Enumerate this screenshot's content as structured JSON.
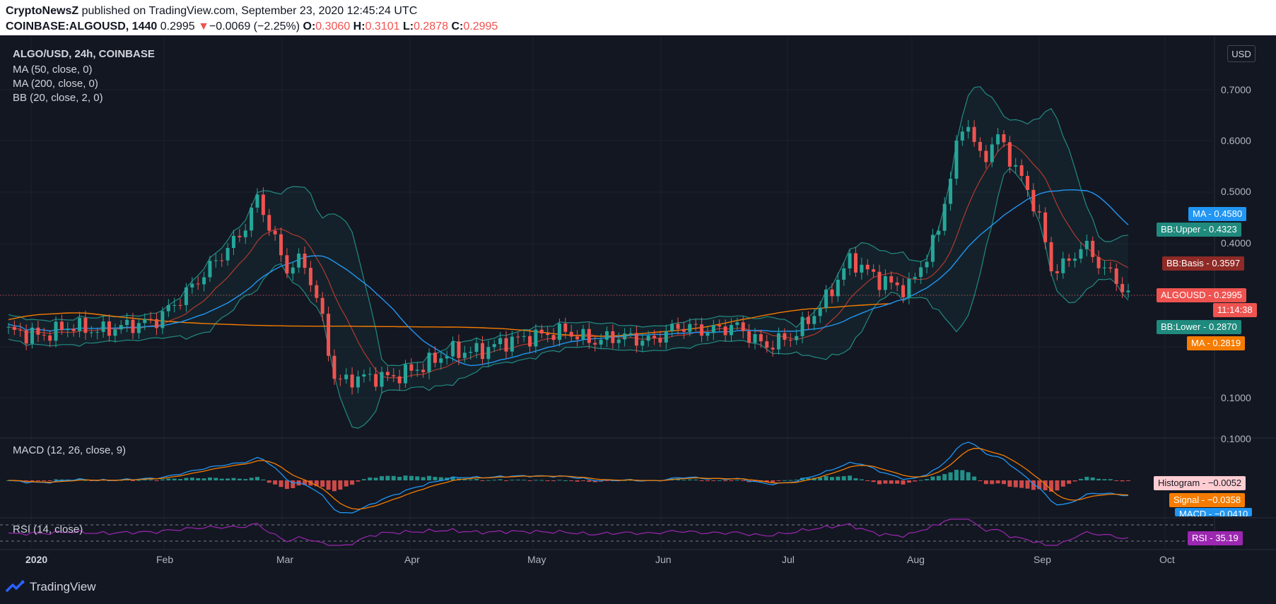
{
  "header": {
    "publisher": "CryptoNewsZ",
    "published_text": "published on TradingView.com, September 23, 2020 12:45:24 UTC",
    "symbol": "COINBASE:ALGOUSD, 1440",
    "last": "0.2995",
    "arrow": "▼",
    "change": "−0.0069 (−2.25%)",
    "o_label": "O:",
    "o_value": "0.3060",
    "h_label": "H:",
    "h_value": "0.3101",
    "l_label": "L:",
    "l_value": "0.2878",
    "c_label": "C:",
    "c_value": "0.2995"
  },
  "legend": {
    "title": "ALGO/USD, 24h, COINBASE",
    "ma50": "MA (50, close, 0)",
    "ma200": "MA (200, close, 0)",
    "bb": "BB (20, close, 2, 0)",
    "macd": "MACD (12, 26, close, 9)",
    "rsi": "RSI (14, close)"
  },
  "axis": {
    "unit": "USD",
    "price_ticks": [
      "0.7000",
      "0.6000",
      "0.5000",
      "0.4000",
      "0.1000"
    ],
    "macd_tick": "0.1000",
    "x_ticks": [
      "2020",
      "Feb",
      "Mar",
      "Apr",
      "May",
      "Jun",
      "Jul",
      "Aug",
      "Sep",
      "Oct"
    ]
  },
  "badges": {
    "ma50_label": "MA",
    "ma50_value": "0.4580",
    "bb_upper_label": "BB:Upper",
    "bb_upper_value": "0.4323",
    "bb_basis_label": "BB:Basis",
    "bb_basis_value": "0.3597",
    "last_label": "ALGOUSD",
    "last_value": "0.2995",
    "countdown": "11:14:38",
    "bb_lower_label": "BB:Lower",
    "bb_lower_value": "0.2870",
    "ma200_label": "MA",
    "ma200_value": "0.2819",
    "hist_label": "Histogram",
    "hist_value": "−0.0052",
    "signal_label": "Signal",
    "signal_value": "−0.0358",
    "macd_label": "MACD",
    "macd_value": "−0.0410",
    "rsi_label": "RSI",
    "rsi_value": "35.19"
  },
  "footer": {
    "brand": "TradingView"
  },
  "colors": {
    "up": "#26a69a",
    "down": "#ef5350",
    "ma50": "#2196f3",
    "ma200": "#f57c00",
    "bb_band": "#26a69a",
    "bb_basis": "#b2392f",
    "rsi": "#9c27b0",
    "background": "#131722"
  },
  "chart_data": {
    "type": "candlestick",
    "symbol": "ALGOUSD",
    "timeframe": "24h",
    "ylim_approx": [
      0.05,
      0.77
    ],
    "x": [
      "2019-12-24",
      "2020-01-01",
      "2020-01-08",
      "2020-01-15",
      "2020-01-22",
      "2020-01-29",
      "2020-02-05",
      "2020-02-12",
      "2020-02-19",
      "2020-02-23",
      "2020-03-01",
      "2020-03-05",
      "2020-03-09",
      "2020-03-13",
      "2020-03-20",
      "2020-03-27",
      "2020-04-03",
      "2020-04-10",
      "2020-04-17",
      "2020-04-24",
      "2020-05-01",
      "2020-05-08",
      "2020-05-15",
      "2020-05-22",
      "2020-05-29",
      "2020-06-05",
      "2020-06-12",
      "2020-06-19",
      "2020-06-26",
      "2020-07-03",
      "2020-07-10",
      "2020-07-17",
      "2020-07-24",
      "2020-07-31",
      "2020-08-07",
      "2020-08-11",
      "2020-08-14",
      "2020-08-18",
      "2020-08-22",
      "2020-08-27",
      "2020-09-01",
      "2020-09-04",
      "2020-09-08",
      "2020-09-12",
      "2020-09-16",
      "2020-09-20",
      "2020-09-23"
    ],
    "close": [
      0.23,
      0.22,
      0.24,
      0.23,
      0.24,
      0.25,
      0.3,
      0.36,
      0.42,
      0.49,
      0.35,
      0.37,
      0.28,
      0.13,
      0.14,
      0.14,
      0.16,
      0.19,
      0.19,
      0.21,
      0.22,
      0.23,
      0.21,
      0.22,
      0.21,
      0.24,
      0.23,
      0.24,
      0.2,
      0.22,
      0.28,
      0.37,
      0.33,
      0.31,
      0.41,
      0.55,
      0.65,
      0.56,
      0.61,
      0.54,
      0.46,
      0.35,
      0.36,
      0.4,
      0.36,
      0.33,
      0.2995
    ],
    "series": [
      {
        "name": "MA (50, close, 0)",
        "last": 0.458
      },
      {
        "name": "MA (200, close, 0)",
        "last": 0.2819
      },
      {
        "name": "BB Upper",
        "last": 0.4323
      },
      {
        "name": "BB Basis",
        "last": 0.3597
      },
      {
        "name": "BB Lower",
        "last": 0.287
      }
    ],
    "macd": {
      "histogram": -0.0052,
      "signal": -0.0358,
      "macd": -0.041
    },
    "rsi": 35.19,
    "legend": "top-left",
    "grid": true
  }
}
